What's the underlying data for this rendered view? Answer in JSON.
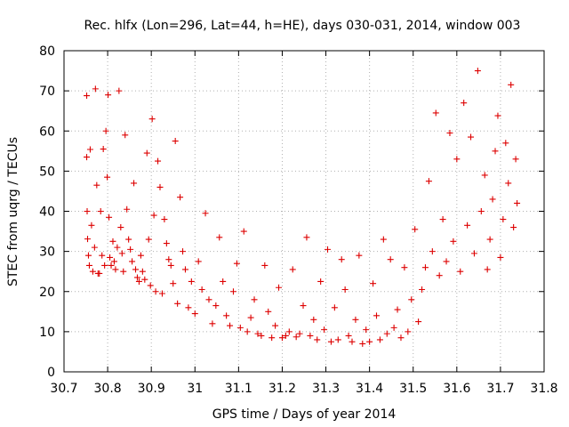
{
  "chart_data": {
    "type": "scatter",
    "title": "Rec. hlfx (Lon=296, Lat=44, h=HE), days 030-031, 2014, window 003",
    "xlabel": "GPS time / Days of year 2014",
    "ylabel": "STEC from uqrg / TECUs",
    "xlim": [
      30.7,
      31.8
    ],
    "ylim": [
      0,
      80
    ],
    "xticks": [
      "30.7",
      "30.8",
      "30.9",
      "31",
      "31.1",
      "31.2",
      "31.3",
      "31.4",
      "31.5",
      "31.6",
      "31.7",
      "31.8"
    ],
    "yticks": [
      "0",
      "10",
      "20",
      "30",
      "40",
      "50",
      "60",
      "70",
      "80"
    ],
    "grid": true,
    "marker": "+",
    "color": "#dd0000",
    "x": [
      30.752,
      30.752,
      30.753,
      30.754,
      30.756,
      30.758,
      30.76,
      30.763,
      30.766,
      30.77,
      30.772,
      30.775,
      30.778,
      30.781,
      30.784,
      30.787,
      30.79,
      30.793,
      30.796,
      30.799,
      30.801,
      30.803,
      30.805,
      30.808,
      30.812,
      30.815,
      30.818,
      30.822,
      30.826,
      30.83,
      30.833,
      30.836,
      30.84,
      30.844,
      30.848,
      30.852,
      30.856,
      30.86,
      30.864,
      30.868,
      30.872,
      30.876,
      30.88,
      30.885,
      30.89,
      30.894,
      30.898,
      30.902,
      30.906,
      30.91,
      30.915,
      30.92,
      30.925,
      30.93,
      30.935,
      30.94,
      30.945,
      30.95,
      30.955,
      30.96,
      30.966,
      30.972,
      30.978,
      30.985,
      30.992,
      31.0,
      31.008,
      31.016,
      31.024,
      31.032,
      31.04,
      31.048,
      31.056,
      31.064,
      31.072,
      31.08,
      31.088,
      31.096,
      31.104,
      31.112,
      31.12,
      31.128,
      31.136,
      31.144,
      31.152,
      31.16,
      31.168,
      31.176,
      31.184,
      31.192,
      31.2,
      31.208,
      31.216,
      31.224,
      31.232,
      31.24,
      31.248,
      31.256,
      31.264,
      31.272,
      31.28,
      31.288,
      31.296,
      31.304,
      31.312,
      31.32,
      31.328,
      31.336,
      31.344,
      31.352,
      31.36,
      31.368,
      31.376,
      31.384,
      31.392,
      31.4,
      31.408,
      31.416,
      31.424,
      31.432,
      31.44,
      31.448,
      31.456,
      31.464,
      31.472,
      31.48,
      31.488,
      31.496,
      31.504,
      31.512,
      31.52,
      31.528,
      31.536,
      31.544,
      31.552,
      31.56,
      31.568,
      31.576,
      31.584,
      31.592,
      31.6,
      31.608,
      31.616,
      31.624,
      31.632,
      31.64,
      31.648,
      31.656,
      31.664,
      31.67,
      31.676,
      31.682,
      31.688,
      31.694,
      31.7,
      31.706,
      31.712,
      31.718,
      31.724,
      31.73,
      31.735,
      31.738
    ],
    "y": [
      68.8,
      53.5,
      40.0,
      33.1,
      29.0,
      26.5,
      55.4,
      36.5,
      25.0,
      31.0,
      70.5,
      46.5,
      24.5,
      24.5,
      40.0,
      29.0,
      55.5,
      26.5,
      60.0,
      48.5,
      69.0,
      38.5,
      28.5,
      26.5,
      32.5,
      27.5,
      25.5,
      31.0,
      70.0,
      36.0,
      29.5,
      25.0,
      59.0,
      40.5,
      33.0,
      30.5,
      27.5,
      47.0,
      25.5,
      23.5,
      22.5,
      29.0,
      25.0,
      23.0,
      54.5,
      33.0,
      21.5,
      63.0,
      39.0,
      20.0,
      52.5,
      46.0,
      19.5,
      38.0,
      32.0,
      28.0,
      26.5,
      22.0,
      57.5,
      17.0,
      43.5,
      30.0,
      25.5,
      16.0,
      22.5,
      14.5,
      27.5,
      20.5,
      39.5,
      18.0,
      12.0,
      16.5,
      33.5,
      22.5,
      14.0,
      11.5,
      20.0,
      27.0,
      11.0,
      35.0,
      10.0,
      13.5,
      18.0,
      9.5,
      9.0,
      26.5,
      15.0,
      8.5,
      11.5,
      21.0,
      8.5,
      9.0,
      10.0,
      25.5,
      8.7,
      9.5,
      16.5,
      33.5,
      9.0,
      13.0,
      8.0,
      22.5,
      10.5,
      30.5,
      7.5,
      16.0,
      8.0,
      28.0,
      20.5,
      9.0,
      7.5,
      13.0,
      29.0,
      7.0,
      10.5,
      7.5,
      22.0,
      14.0,
      8.0,
      33.0,
      9.5,
      28.0,
      11.0,
      15.5,
      8.5,
      26.0,
      10.0,
      18.0,
      35.5,
      12.5,
      20.5,
      26.0,
      47.5,
      30.0,
      64.5,
      24.0,
      38.0,
      27.5,
      59.5,
      32.5,
      53.0,
      25.0,
      67.0,
      36.5,
      58.5,
      29.5,
      75.0,
      40.0,
      49.0,
      25.5,
      33.0,
      43.0,
      55.0,
      63.8,
      28.5,
      38.0,
      57.0,
      47.0,
      71.5,
      36.0,
      53.0,
      42.0
    ]
  }
}
